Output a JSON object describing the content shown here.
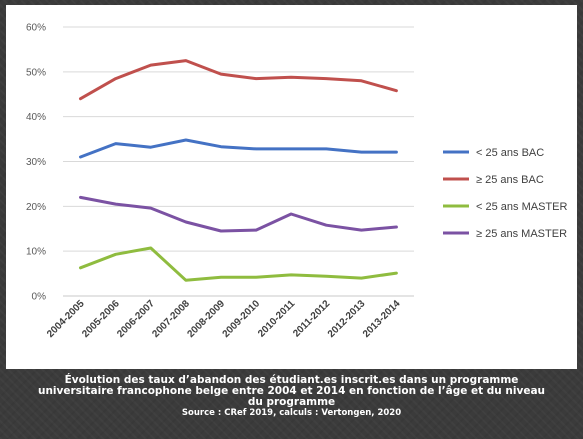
{
  "caption": {
    "title": "Évolution des taux d’abandon des étudiant.es inscrit.es dans un programme universitaire francophone belge entre 2004 et 2014 en fonction de l’âge et du niveau du programme",
    "source": "Source : CRef 2019, calculs : Vertongen, 2020"
  },
  "chart_data": {
    "type": "line",
    "categories": [
      "2004-2005",
      "2005-2006",
      "2006-2007",
      "2007-2008",
      "2008-2009",
      "2009-2010",
      "2010-2011",
      "2011-2012",
      "2012-2013",
      "2013-2014"
    ],
    "y_ticks": [
      "0%",
      "10%",
      "20%",
      "30%",
      "40%",
      "50%",
      "60%"
    ],
    "ylim": [
      0,
      60
    ],
    "y_unit": "%",
    "grid": true,
    "legend_position": "right",
    "series": [
      {
        "name": "< 25 ans BAC",
        "color": "#4472c4",
        "values": [
          31,
          34,
          33.2,
          34.8,
          33.3,
          32.8,
          32.8,
          32.8,
          32.1,
          32.1
        ]
      },
      {
        "name": "≥ 25 ans BAC",
        "color": "#c0504d",
        "values": [
          44,
          48.5,
          51.5,
          52.5,
          49.5,
          48.5,
          48.8,
          48.5,
          48,
          45.8
        ]
      },
      {
        "name": "< 25 ans MASTER",
        "color": "#8fbc3f",
        "values": [
          6.3,
          9.3,
          10.7,
          3.5,
          4.2,
          4.2,
          4.7,
          4.4,
          4,
          5.1
        ]
      },
      {
        "name": "≥ 25 ans MASTER",
        "color": "#7b52a3",
        "values": [
          22,
          20.5,
          19.6,
          16.5,
          14.5,
          14.7,
          18.3,
          15.8,
          14.7,
          15.4
        ]
      }
    ]
  }
}
